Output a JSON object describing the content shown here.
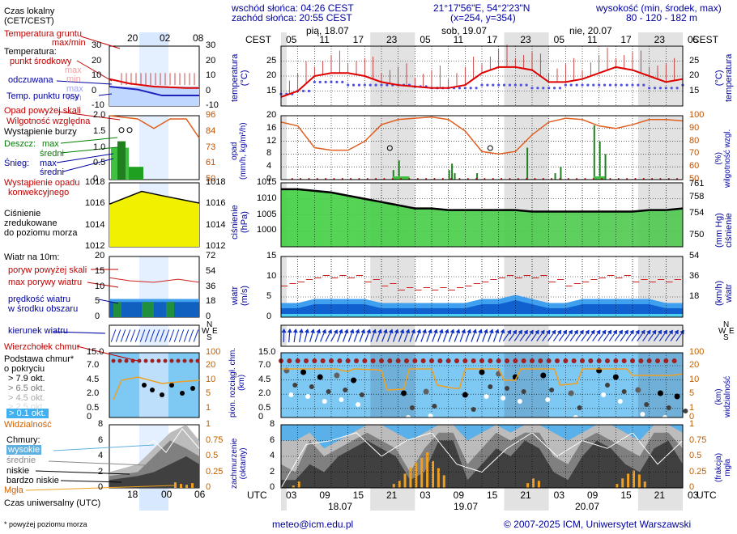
{
  "header": {
    "sunrise": "wschód słońca: 04:26 CEST",
    "sunset": "zachód słońca: 20:55 CEST",
    "coords": "21°17'56\"E, 54°2'23\"N",
    "grid": "(x=254, y=354)",
    "altitude": "wysokość (min, środek, max)",
    "altitude_vals": "80 - 120 - 182 m"
  },
  "timeline": {
    "tz_top": "CEST",
    "tz_bottom": "UTC",
    "top_hours": [
      "05",
      "11",
      "17",
      "23",
      "05",
      "11",
      "17",
      "23",
      "05",
      "11",
      "17",
      "23",
      "05"
    ],
    "bottom_hours": [
      "03",
      "09",
      "15",
      "21",
      "03",
      "09",
      "15",
      "21",
      "03",
      "09",
      "15",
      "21",
      "03"
    ],
    "days": [
      "pią, 18.07",
      "sob, 19.07",
      "nie, 20.07"
    ],
    "bottom_dates": [
      "18.07",
      "19.07",
      "20.07"
    ]
  },
  "legend": {
    "local_time": "Czas lokalny",
    "local_time_sub": "(CET/CEST)",
    "legend_hours_top": [
      "20",
      "02",
      "08"
    ],
    "legend_hours_bottom": [
      "18",
      "00",
      "06"
    ],
    "ground_temp": "Temperatura gruntu",
    "ground_temp_sub": "max/min",
    "temperature": "Temperatura:",
    "dew_mid": "punkt środkowy",
    "temp_max": "max",
    "temp_min": "min",
    "perceived": "odczuwana",
    "perc_max": "max",
    "perc_min": "min",
    "dew_point": "Temp. punktu rosy",
    "precip_above": "Opad powyżej skali",
    "humidity": "Wilgotność względna",
    "storm": "Wystąpienie burzy",
    "rain": "Deszcz:",
    "rain_max": "max",
    "rain_mid": "średni",
    "snow": "Śnieg:",
    "snow_max": "max",
    "snow_mid": "średni",
    "convective": "Wystąpienie opadu",
    "convective2": "konwekcyjnego",
    "pressure1": "Ciśnienie",
    "pressure2": "zredukowane",
    "pressure3": "do poziomu morza",
    "wind_title": "Wiatr na 10m:",
    "gust_above": "poryw powyżej skali",
    "gust_max": "max porywy wiatru",
    "wind_speed": "prędkość wiatru",
    "wind_speed2": "w środku obszaru",
    "wind_dir": "kierunek wiatru",
    "cloud_top": "Wierzchołek chmur",
    "cloud_base": "Podstawa chmur*",
    "cloud_base2": "o pokryciu",
    "oktas": [
      "> 7.9 okt.",
      "> 6.5 okt.",
      "> 4.5 okt.",
      "> 2.5 okt.",
      "> 0.1 okt."
    ],
    "visibility": "Widzialność",
    "clouds": "Chmury:",
    "cl_high": "wysokie",
    "cl_mid": "średnie",
    "cl_low": "niskie",
    "cl_vlow": "bardzo niskie",
    "fog": "Mgła",
    "utc": "Czas uniwersalny (UTC)",
    "footnote": "* powyżej poziomu morza"
  },
  "panels": {
    "temp": {
      "left": "temperatura",
      "left2": "(°C)",
      "right": "temperatura",
      "right2": "(°C)"
    },
    "precip": {
      "left": "opad",
      "left2": "(mm/h, kg/m²/h)",
      "right": "wilgotność wzgl.",
      "right2": "(%)"
    },
    "pressure": {
      "left": "ciśnienie",
      "left2": "(hPa)",
      "right": "ciśnienie",
      "right2": "(mm Hg)"
    },
    "wind": {
      "left": "wiatr",
      "left2": "(m/s)",
      "right": "wiatr",
      "right2": "(km/h)"
    },
    "clouds": {
      "left": "pion. rozciągł. chm.",
      "left2": "(km)",
      "right": "widzialność",
      "right2": "(km)"
    },
    "cover": {
      "left": "zachmurzenie",
      "left2": "(oktanty)",
      "right": "mgła",
      "right2": "(frakcja)"
    }
  },
  "footer": {
    "email": "meteo@icm.edu.pl",
    "copyright": "© 2007-2025 ICM, Uniwersytet Warszawski"
  },
  "chart_data": [
    {
      "type": "line",
      "title": "temperatura (°C)",
      "x_hours_from_start": [
        0,
        3,
        6,
        9,
        12,
        15,
        18,
        21,
        24,
        27,
        30,
        33,
        36,
        39,
        42,
        45,
        48,
        51,
        54,
        57,
        60,
        63,
        66,
        69,
        72
      ],
      "series": [
        {
          "name": "temperatura",
          "color": "#e00000",
          "values": [
            13,
            15,
            20,
            21,
            21,
            20,
            18,
            17,
            16.5,
            16,
            16,
            17,
            21,
            23,
            23,
            22,
            18,
            18,
            19,
            21,
            23,
            22,
            20,
            18,
            19
          ]
        },
        {
          "name": "odczuwana",
          "color": "#2020c0",
          "values": [
            14,
            15,
            18,
            18,
            17,
            17,
            17,
            17,
            16.5,
            16,
            16,
            16,
            17,
            17,
            17,
            16,
            16,
            17,
            17,
            17,
            17,
            17,
            16,
            16,
            17
          ]
        }
      ],
      "ylim": [
        10,
        30
      ],
      "yticks": [
        15,
        20,
        25
      ]
    },
    {
      "type": "line",
      "title": "opad / wilgotność wzgl.",
      "series": [
        {
          "name": "wilgotność wzgl.",
          "color": "#e06020",
          "values": [
            95,
            92,
            75,
            73,
            73,
            80,
            93,
            97,
            98,
            99,
            97,
            88,
            72,
            70,
            72,
            85,
            95,
            98,
            97,
            92,
            90,
            93,
            97,
            97,
            96
          ]
        }
      ],
      "ylim_left": [
        0,
        20
      ],
      "ylim_right": [
        50,
        100
      ]
    },
    {
      "type": "area",
      "title": "ciśnienie (hPa)",
      "series": [
        {
          "name": "ciśnienie",
          "color": "#20c020",
          "values": [
            1013,
            1013,
            1012.5,
            1012,
            1011,
            1010,
            1009,
            1008,
            1007,
            1007,
            1006.5,
            1006.5,
            1006.5,
            1006.5,
            1006.5,
            1006,
            1006,
            1006,
            1006,
            1006,
            1006,
            1006,
            1006.5,
            1006.5,
            1007
          ]
        }
      ],
      "ylim": [
        995,
        1015
      ],
      "yticks": [
        1000,
        1005,
        1010,
        1015
      ],
      "right_ticks": [
        750,
        754,
        758,
        761
      ]
    },
    {
      "type": "area",
      "title": "wiatr (m/s)",
      "series": [
        {
          "name": "prędkość wiatru",
          "color": "#1060e0",
          "values": [
            3,
            3,
            4,
            4,
            4,
            4,
            3,
            3,
            3,
            3,
            3,
            3,
            4,
            4,
            5,
            4,
            3,
            3,
            4,
            4,
            4,
            4,
            4,
            3,
            3
          ]
        },
        {
          "name": "max porywy wiatru",
          "color": "#d02020",
          "values": [
            8,
            9,
            10,
            10,
            10,
            9,
            8,
            7,
            7,
            7,
            7,
            8,
            9,
            10,
            10,
            10,
            9,
            8,
            9,
            10,
            10,
            9,
            9,
            9,
            9
          ]
        }
      ],
      "ylim": [
        0,
        15
      ],
      "yticks": [
        5,
        10,
        15
      ],
      "right_ticks": [
        18,
        36,
        54
      ]
    },
    {
      "type": "scatter",
      "title": "pion. rozciągł. chm. (km) / widzialność (km)",
      "yticks": [
        0.5,
        2.0,
        4.5,
        7.0,
        15.0
      ],
      "right_ticks": [
        1,
        5,
        10,
        20,
        100
      ]
    },
    {
      "type": "area",
      "title": "zachmurzenie (oktanty) / mgła (frakcja)",
      "ylim": [
        0,
        8
      ],
      "yticks": [
        0,
        2,
        4,
        6,
        8
      ],
      "right_ticks": [
        0,
        0.25,
        0.5,
        0.75,
        1
      ]
    }
  ]
}
